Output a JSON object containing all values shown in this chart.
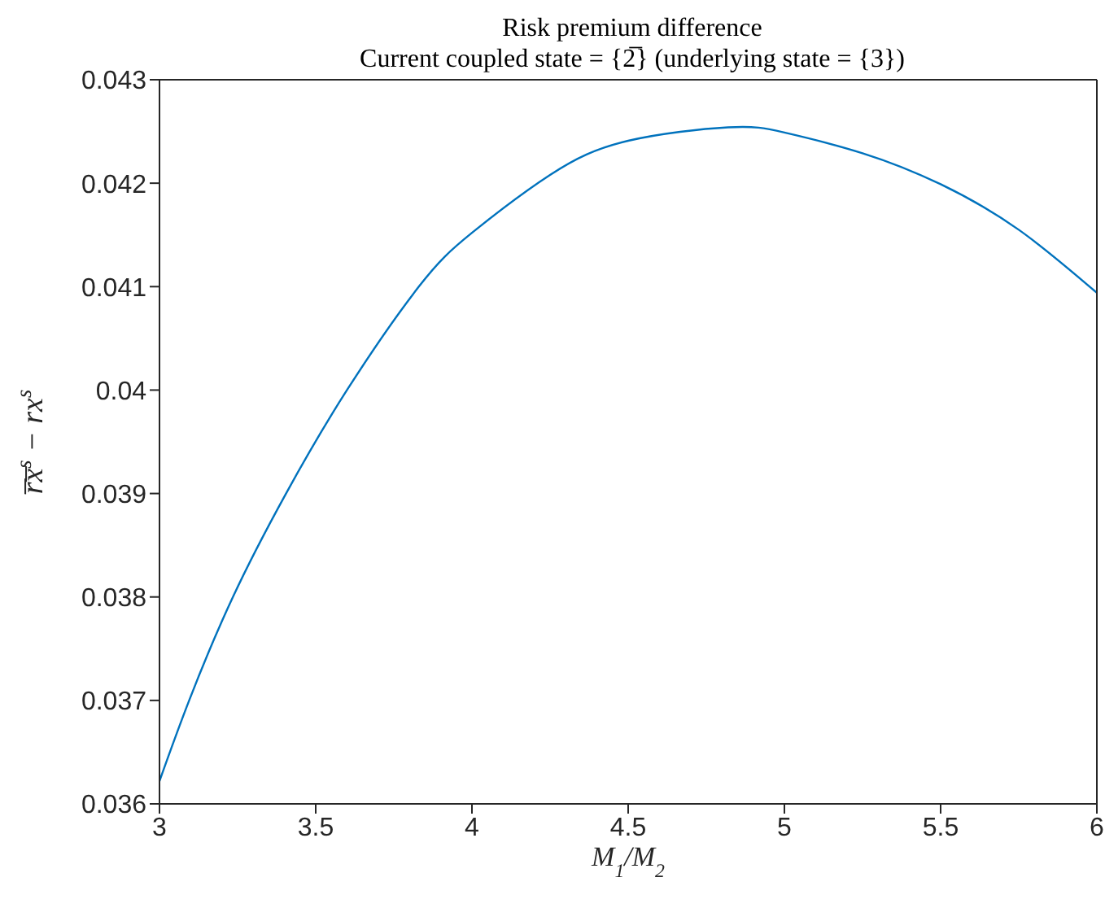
{
  "chart_data": {
    "type": "line",
    "title": "Risk premium difference",
    "subtitle": "Current coupled state = {2̅} (underlying state = {3})",
    "xlabel": "M$_{1}$/M$_{2}$",
    "ylabel": "r̅x̅$^{s}$ − rx$^{s}$",
    "x": [
      3,
      3.095,
      3.235,
      3.405,
      3.6,
      3.83,
      4,
      4.25,
      4.5,
      4.82,
      5,
      5.25,
      5.5,
      5.75,
      6
    ],
    "series": [
      {
        "color": "#0072bd",
        "values": [
          0.03622,
          0.037,
          0.038,
          0.039,
          0.04,
          0.041,
          0.04152,
          0.04208,
          0.04241,
          0.04254,
          0.04249,
          0.04229,
          0.04199,
          0.04155,
          0.04094
        ]
      }
    ],
    "xlim": [
      3,
      6
    ],
    "xticks": [
      3,
      3.5,
      4,
      4.5,
      5,
      5.5,
      6
    ],
    "ylim": [
      0.036,
      0.043
    ],
    "yticks": [
      0.036,
      0.037,
      0.038,
      0.039,
      0.04,
      0.041,
      0.042,
      0.043
    ],
    "grid": false,
    "legend": false,
    "marker": "none",
    "line_style": "solid"
  }
}
